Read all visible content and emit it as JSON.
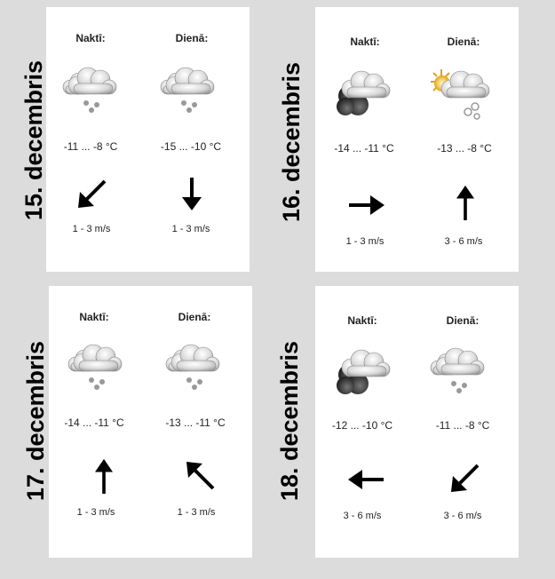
{
  "days": [
    {
      "date": "15. decembris",
      "night": {
        "label": "Naktī:",
        "temp": "-11 ... -8 °C",
        "wind": "1 - 3 m/s",
        "icon": "cloud-snow-icon",
        "arrow": "arrow-down-left-icon"
      },
      "day": {
        "label": "Dienā:",
        "temp": "-15 ... -10 °C",
        "wind": "1 - 3 m/s",
        "icon": "cloud-snow-icon",
        "arrow": "arrow-down-icon"
      }
    },
    {
      "date": "16. decembris",
      "night": {
        "label": "Naktī:",
        "temp": "-14 ... -11 °C",
        "wind": "1 - 3 m/s",
        "icon": "dark-cloud-icon",
        "arrow": "arrow-right-icon"
      },
      "day": {
        "label": "Dienā:",
        "temp": "-13 ... -8 °C",
        "wind": "3 - 6 m/s",
        "icon": "sun-cloud-snow-icon",
        "arrow": "arrow-up-icon"
      }
    },
    {
      "date": "17. decembris",
      "night": {
        "label": "Naktī:",
        "temp": "-14 ... -11 °C",
        "wind": "1 - 3 m/s",
        "icon": "cloud-snow-icon",
        "arrow": "arrow-up-icon"
      },
      "day": {
        "label": "Dienā:",
        "temp": "-13 ... -11 °C",
        "wind": "1 - 3 m/s",
        "icon": "cloud-snow-icon",
        "arrow": "arrow-up-left-icon"
      }
    },
    {
      "date": "18. decembris",
      "night": {
        "label": "Naktī:",
        "temp": "-12 ... -10 °C",
        "wind": "3 - 6 m/s",
        "icon": "dark-cloud-icon",
        "arrow": "arrow-left-icon"
      },
      "day": {
        "label": "Dienā:",
        "temp": "-11 ... -8 °C",
        "wind": "3 - 6 m/s",
        "icon": "cloud-snow-icon",
        "arrow": "arrow-down-left-icon"
      }
    }
  ]
}
